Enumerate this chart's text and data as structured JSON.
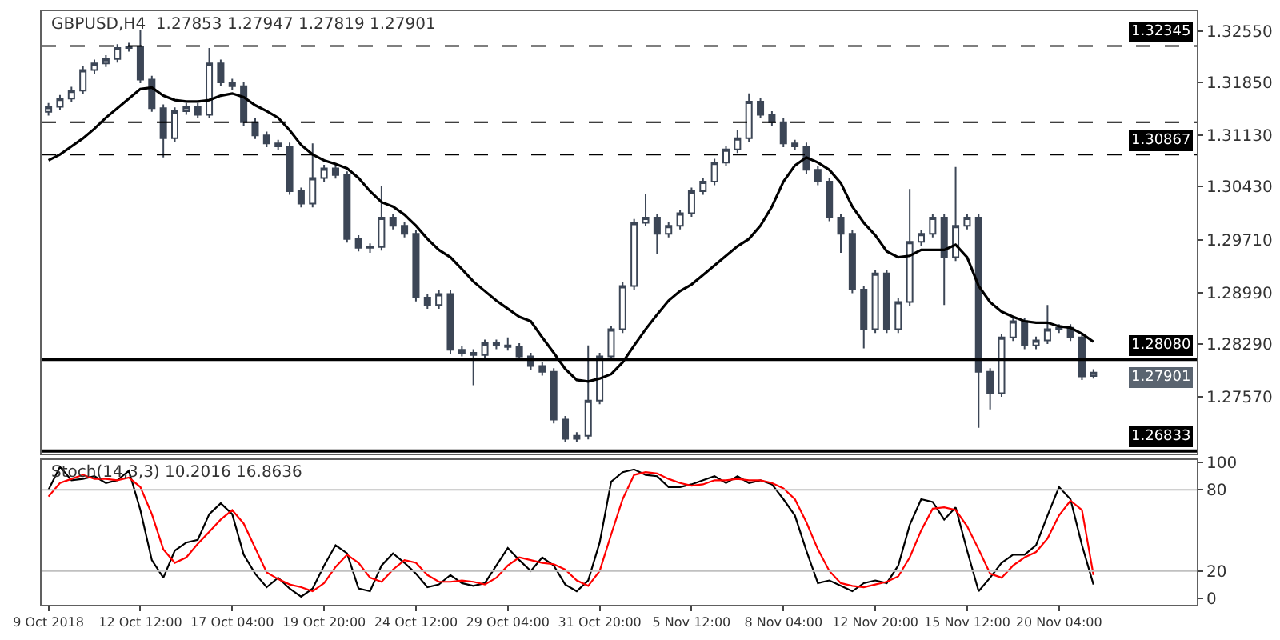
{
  "chart_data": [
    {
      "type": "candlestick",
      "title": "GBPUSD,H4  1.27853 1.27947 1.27819 1.27901",
      "categories": [
        null,
        null,
        null,
        null,
        null,
        null,
        null,
        null,
        null,
        null,
        null,
        null,
        null,
        null,
        null,
        null,
        null,
        null,
        null,
        null,
        null,
        null,
        null,
        null,
        null,
        null,
        null,
        null,
        null,
        null,
        null,
        null,
        null,
        null,
        null,
        null,
        null,
        null,
        null,
        null,
        null,
        null,
        null,
        null,
        null,
        null,
        null,
        null,
        null,
        null,
        null,
        null,
        null,
        null,
        null,
        null,
        null,
        null,
        null,
        null,
        null,
        null,
        null,
        null,
        null,
        null,
        null,
        null,
        null,
        null,
        null,
        null,
        null,
        null,
        null,
        null,
        null,
        null,
        null,
        null,
        null,
        null,
        null,
        null,
        null,
        null,
        null,
        null,
        null,
        null,
        null,
        null
      ],
      "color": "#3c4656",
      "ohlc": [
        [
          1.3145,
          1.3157,
          1.314,
          1.3152
        ],
        [
          1.3152,
          1.3168,
          1.3147,
          1.3163
        ],
        [
          1.3163,
          1.3179,
          1.3158,
          1.3174
        ],
        [
          1.3174,
          1.3207,
          1.3169,
          1.3202
        ],
        [
          1.3202,
          1.3216,
          1.3197,
          1.3211
        ],
        [
          1.3211,
          1.3222,
          1.3206,
          1.3217
        ],
        [
          1.3217,
          1.3237,
          1.3212,
          1.3232
        ],
        [
          1.3232,
          1.3239,
          1.3227,
          1.3234
        ],
        [
          1.3234,
          1.3256,
          1.3184,
          1.3189
        ],
        [
          1.3189,
          1.3194,
          1.3145,
          1.315
        ],
        [
          1.315,
          1.3155,
          1.3083,
          1.3109
        ],
        [
          1.3109,
          1.3151,
          1.3104,
          1.3146
        ],
        [
          1.3146,
          1.3157,
          1.3141,
          1.3152
        ],
        [
          1.3152,
          1.3157,
          1.3136,
          1.3141
        ],
        [
          1.3141,
          1.3232,
          1.3136,
          1.3211
        ],
        [
          1.3211,
          1.3216,
          1.318,
          1.3185
        ],
        [
          1.3185,
          1.319,
          1.3175,
          1.318
        ],
        [
          1.318,
          1.3185,
          1.3126,
          1.3131
        ],
        [
          1.3131,
          1.3136,
          1.3108,
          1.3113
        ],
        [
          1.3113,
          1.3118,
          1.3097,
          1.3102
        ],
        [
          1.3102,
          1.3107,
          1.3093,
          1.3098
        ],
        [
          1.3098,
          1.3103,
          1.3032,
          1.3037
        ],
        [
          1.3037,
          1.3042,
          1.3015,
          1.302
        ],
        [
          1.302,
          1.3102,
          1.3015,
          1.3055
        ],
        [
          1.3055,
          1.3073,
          1.305,
          1.3068
        ],
        [
          1.3068,
          1.3073,
          1.3054,
          1.3059
        ],
        [
          1.3059,
          1.3064,
          1.2967,
          1.2972
        ],
        [
          1.2972,
          1.2977,
          1.2955,
          1.296
        ],
        [
          1.296,
          1.2966,
          1.2953,
          1.2961
        ],
        [
          1.2961,
          1.3044,
          1.2956,
          1.3001
        ],
        [
          1.3001,
          1.3006,
          1.2985,
          1.299
        ],
        [
          1.299,
          1.2995,
          1.2974,
          1.2979
        ],
        [
          1.2979,
          1.2984,
          1.2887,
          1.2892
        ],
        [
          1.2892,
          1.2897,
          1.2877,
          1.2882
        ],
        [
          1.2882,
          1.2902,
          1.2877,
          1.2897
        ],
        [
          1.2897,
          1.2902,
          1.2816,
          1.2821
        ],
        [
          1.2821,
          1.2826,
          1.2812,
          1.2817
        ],
        [
          1.2817,
          1.2822,
          1.2773,
          1.2814
        ],
        [
          1.2814,
          1.2835,
          1.2809,
          1.283
        ],
        [
          1.283,
          1.2835,
          1.2822,
          1.2827
        ],
        [
          1.2827,
          1.2838,
          1.282,
          1.2825
        ],
        [
          1.2825,
          1.283,
          1.2807,
          1.2812
        ],
        [
          1.2812,
          1.2817,
          1.2794,
          1.2799
        ],
        [
          1.2799,
          1.2804,
          1.2786,
          1.2791
        ],
        [
          1.2791,
          1.2796,
          1.2721,
          1.2726
        ],
        [
          1.2726,
          1.2731,
          1.2695,
          1.27
        ],
        [
          1.27,
          1.2709,
          1.2695,
          1.2704
        ],
        [
          1.2704,
          1.2827,
          1.2699,
          1.2752
        ],
        [
          1.2752,
          1.2817,
          1.2747,
          1.2812
        ],
        [
          1.2812,
          1.2854,
          1.2807,
          1.2849
        ],
        [
          1.2849,
          1.2913,
          1.2844,
          1.2908
        ],
        [
          1.2908,
          1.2999,
          1.2903,
          1.2994
        ],
        [
          1.2994,
          1.3033,
          1.2989,
          1.3001
        ],
        [
          1.3001,
          1.3006,
          1.2951,
          1.2979
        ],
        [
          1.2979,
          1.2995,
          1.2974,
          1.299
        ],
        [
          1.299,
          1.3012,
          1.2985,
          1.3007
        ],
        [
          1.3007,
          1.3042,
          1.3002,
          1.3037
        ],
        [
          1.3037,
          1.3055,
          1.3032,
          1.305
        ],
        [
          1.305,
          1.3081,
          1.3045,
          1.3076
        ],
        [
          1.3076,
          1.3099,
          1.3071,
          1.3094
        ],
        [
          1.3094,
          1.312,
          1.3089,
          1.3109
        ],
        [
          1.3109,
          1.317,
          1.3104,
          1.3159
        ],
        [
          1.3159,
          1.3164,
          1.3136,
          1.3141
        ],
        [
          1.3141,
          1.3146,
          1.3126,
          1.3131
        ],
        [
          1.3131,
          1.3136,
          1.3097,
          1.3102
        ],
        [
          1.3102,
          1.3107,
          1.3093,
          1.3098
        ],
        [
          1.3098,
          1.3103,
          1.3061,
          1.3066
        ],
        [
          1.3066,
          1.3071,
          1.3045,
          1.305
        ],
        [
          1.305,
          1.3055,
          1.2996,
          1.3001
        ],
        [
          1.3001,
          1.3006,
          1.2953,
          1.2979
        ],
        [
          1.2979,
          1.2984,
          1.2898,
          1.2903
        ],
        [
          1.2903,
          1.2908,
          1.2823,
          1.2849
        ],
        [
          1.2849,
          1.293,
          1.2844,
          1.2925
        ],
        [
          1.2925,
          1.293,
          1.2844,
          1.2849
        ],
        [
          1.2849,
          1.2891,
          1.2844,
          1.2886
        ],
        [
          1.2886,
          1.304,
          1.2881,
          1.2968
        ],
        [
          1.2968,
          1.2984,
          1.2963,
          1.2979
        ],
        [
          1.2979,
          1.3006,
          1.2974,
          1.3001
        ],
        [
          1.3001,
          1.3006,
          1.2882,
          1.2947
        ],
        [
          1.2947,
          1.307,
          1.2942,
          1.299
        ],
        [
          1.299,
          1.3006,
          1.2985,
          1.3001
        ],
        [
          1.3001,
          1.3006,
          1.2715,
          1.2791
        ],
        [
          1.2791,
          1.2796,
          1.274,
          1.2762
        ],
        [
          1.2762,
          1.2843,
          1.2757,
          1.2838
        ],
        [
          1.2838,
          1.2865,
          1.2833,
          1.286
        ],
        [
          1.286,
          1.2865,
          1.2822,
          1.2827
        ],
        [
          1.2827,
          1.2839,
          1.2822,
          1.2834
        ],
        [
          1.2834,
          1.2882,
          1.2829,
          1.2849
        ],
        [
          1.2849,
          1.2856,
          1.2844,
          1.2851
        ],
        [
          1.2851,
          1.2856,
          1.2833,
          1.2838
        ],
        [
          1.2838,
          1.2843,
          1.278,
          1.2785
        ],
        [
          1.27853,
          1.27947,
          1.27819,
          1.27901
        ]
      ],
      "series": [
        {
          "type": "line",
          "color": "#000000",
          "values": [
            1.3079,
            1.3087,
            1.3098,
            1.3109,
            1.3122,
            1.3137,
            1.315,
            1.3163,
            1.3176,
            1.3178,
            1.3167,
            1.3161,
            1.3159,
            1.3159,
            1.3161,
            1.3167,
            1.317,
            1.3165,
            1.3154,
            1.3146,
            1.3137,
            1.312,
            1.31,
            1.3087,
            1.3079,
            1.3074,
            1.3068,
            1.3055,
            1.3037,
            1.3022,
            1.3016,
            1.3005,
            1.299,
            1.2972,
            1.2957,
            1.2947,
            1.2931,
            1.2914,
            1.2901,
            1.2888,
            1.2877,
            1.2866,
            1.286,
            1.2838,
            1.2817,
            1.2795,
            1.278,
            1.2778,
            1.2782,
            1.2788,
            1.2804,
            1.2827,
            1.2849,
            1.2869,
            1.2888,
            1.2901,
            1.291,
            1.2923,
            1.2936,
            1.2949,
            1.2962,
            1.2972,
            1.299,
            1.3016,
            1.305,
            1.3072,
            1.3083,
            1.3076,
            1.3066,
            1.3048,
            1.3016,
            1.2994,
            1.2977,
            1.2955,
            1.2947,
            1.2949,
            1.2957,
            1.2957,
            1.2957,
            1.2964,
            1.2947,
            1.2908,
            1.2886,
            1.2873,
            1.2866,
            1.286,
            1.2858,
            1.2858,
            1.2853,
            1.2851,
            1.2843,
            1.2832
          ]
        }
      ],
      "ylim": [
        1.268,
        1.3282
      ],
      "yticks": [
        {
          "value": 1.3255,
          "label": "1.32550"
        },
        {
          "value": 1.3185,
          "label": "1.31850"
        },
        {
          "value": 1.3113,
          "label": "1.31130"
        },
        {
          "value": 1.3043,
          "label": "1.30430"
        },
        {
          "value": 1.2971,
          "label": "1.29710"
        },
        {
          "value": 1.2899,
          "label": "1.28990"
        },
        {
          "value": 1.2829,
          "label": "1.28290"
        },
        {
          "value": 1.2757,
          "label": "1.27570"
        }
      ],
      "ref_lines": [
        {
          "axis": "y",
          "value": 1.32345,
          "label": "1.32345",
          "color": "#000000",
          "line_style": "dashed"
        },
        {
          "axis": "y",
          "value": 1.3131,
          "color": "#000000",
          "line_style": "dashed"
        },
        {
          "axis": "y",
          "value": 1.30867,
          "label": "1.30867",
          "color": "#000000",
          "line_style": "dashed"
        },
        {
          "axis": "y",
          "value": 1.2808,
          "label": "1.28080",
          "color": "#000000",
          "line_style": "solid"
        },
        {
          "axis": "y",
          "value": 1.26833,
          "label": "1.26833",
          "color": "#000000",
          "line_style": "solid"
        }
      ],
      "annotations": [
        "1.27901"
      ],
      "tick_labels": "y"
    },
    {
      "type": "line",
      "title": "Stoch(14,3,3) 10.2016 16.8636",
      "categories": [
        "9 Oct 2018",
        null,
        null,
        null,
        null,
        null,
        null,
        null,
        "12 Oct 12:00",
        null,
        null,
        null,
        null,
        null,
        null,
        null,
        "17 Oct 04:00",
        null,
        null,
        null,
        null,
        null,
        null,
        null,
        "19 Oct 20:00",
        null,
        null,
        null,
        null,
        null,
        null,
        null,
        "24 Oct 12:00",
        null,
        null,
        null,
        null,
        null,
        null,
        null,
        "29 Oct 04:00",
        null,
        null,
        null,
        null,
        null,
        null,
        null,
        "31 Oct 20:00",
        null,
        null,
        null,
        null,
        null,
        null,
        null,
        "5 Nov 12:00",
        null,
        null,
        null,
        null,
        null,
        null,
        null,
        "8 Nov 04:00",
        null,
        null,
        null,
        null,
        null,
        null,
        null,
        "12 Nov 20:00",
        null,
        null,
        null,
        null,
        null,
        null,
        null,
        "15 Nov 12:00",
        null,
        null,
        null,
        null,
        null,
        null,
        null,
        "20 Nov 04:00",
        null,
        null,
        null
      ],
      "series": [
        {
          "color": "#000000",
          "values": [
            80,
            97,
            87,
            88,
            90,
            85,
            87,
            94,
            65,
            28,
            15,
            35,
            41,
            43,
            62,
            70,
            62,
            32,
            18,
            8,
            15,
            7,
            1,
            7,
            24,
            39,
            33,
            7,
            5,
            24,
            33,
            26,
            18,
            8,
            10,
            17,
            11,
            9,
            11,
            24,
            37,
            28,
            20,
            30,
            24,
            10,
            5,
            13,
            41,
            86,
            93,
            95,
            91,
            90,
            82,
            82,
            84,
            87,
            90,
            85,
            90,
            85,
            87,
            84,
            73,
            61,
            35,
            11,
            13,
            9,
            5,
            11,
            13,
            11,
            24,
            54,
            73,
            71,
            58,
            67,
            35,
            5,
            15,
            26,
            32,
            32,
            39,
            61,
            82,
            73,
            39,
            10
          ]
        },
        {
          "color": "#ff0000",
          "values": [
            75,
            85,
            88,
            91,
            88,
            88,
            87,
            89,
            82,
            62,
            36,
            26,
            30,
            40,
            49,
            58,
            65,
            55,
            37,
            19,
            14,
            10,
            8,
            5,
            11,
            23,
            32,
            26,
            15,
            12,
            21,
            28,
            26,
            17,
            12,
            12,
            13,
            12,
            10,
            15,
            24,
            30,
            28,
            26,
            25,
            21,
            13,
            9,
            20,
            47,
            73,
            91,
            93,
            92,
            88,
            85,
            83,
            84,
            87,
            87,
            88,
            87,
            87,
            85,
            81,
            73,
            56,
            36,
            20,
            11,
            9,
            8,
            10,
            12,
            16,
            30,
            50,
            66,
            67,
            65,
            53,
            36,
            18,
            15,
            24,
            30,
            34,
            44,
            61,
            72,
            65,
            17
          ]
        }
      ],
      "ylim": [
        -5,
        102
      ],
      "yticks": [
        100,
        80,
        20,
        0
      ],
      "ref_lines": [
        {
          "axis": "y",
          "value": 80,
          "color": "#c0c0c0"
        },
        {
          "axis": "y",
          "value": 20,
          "color": "#c0c0c0"
        }
      ]
    }
  ]
}
